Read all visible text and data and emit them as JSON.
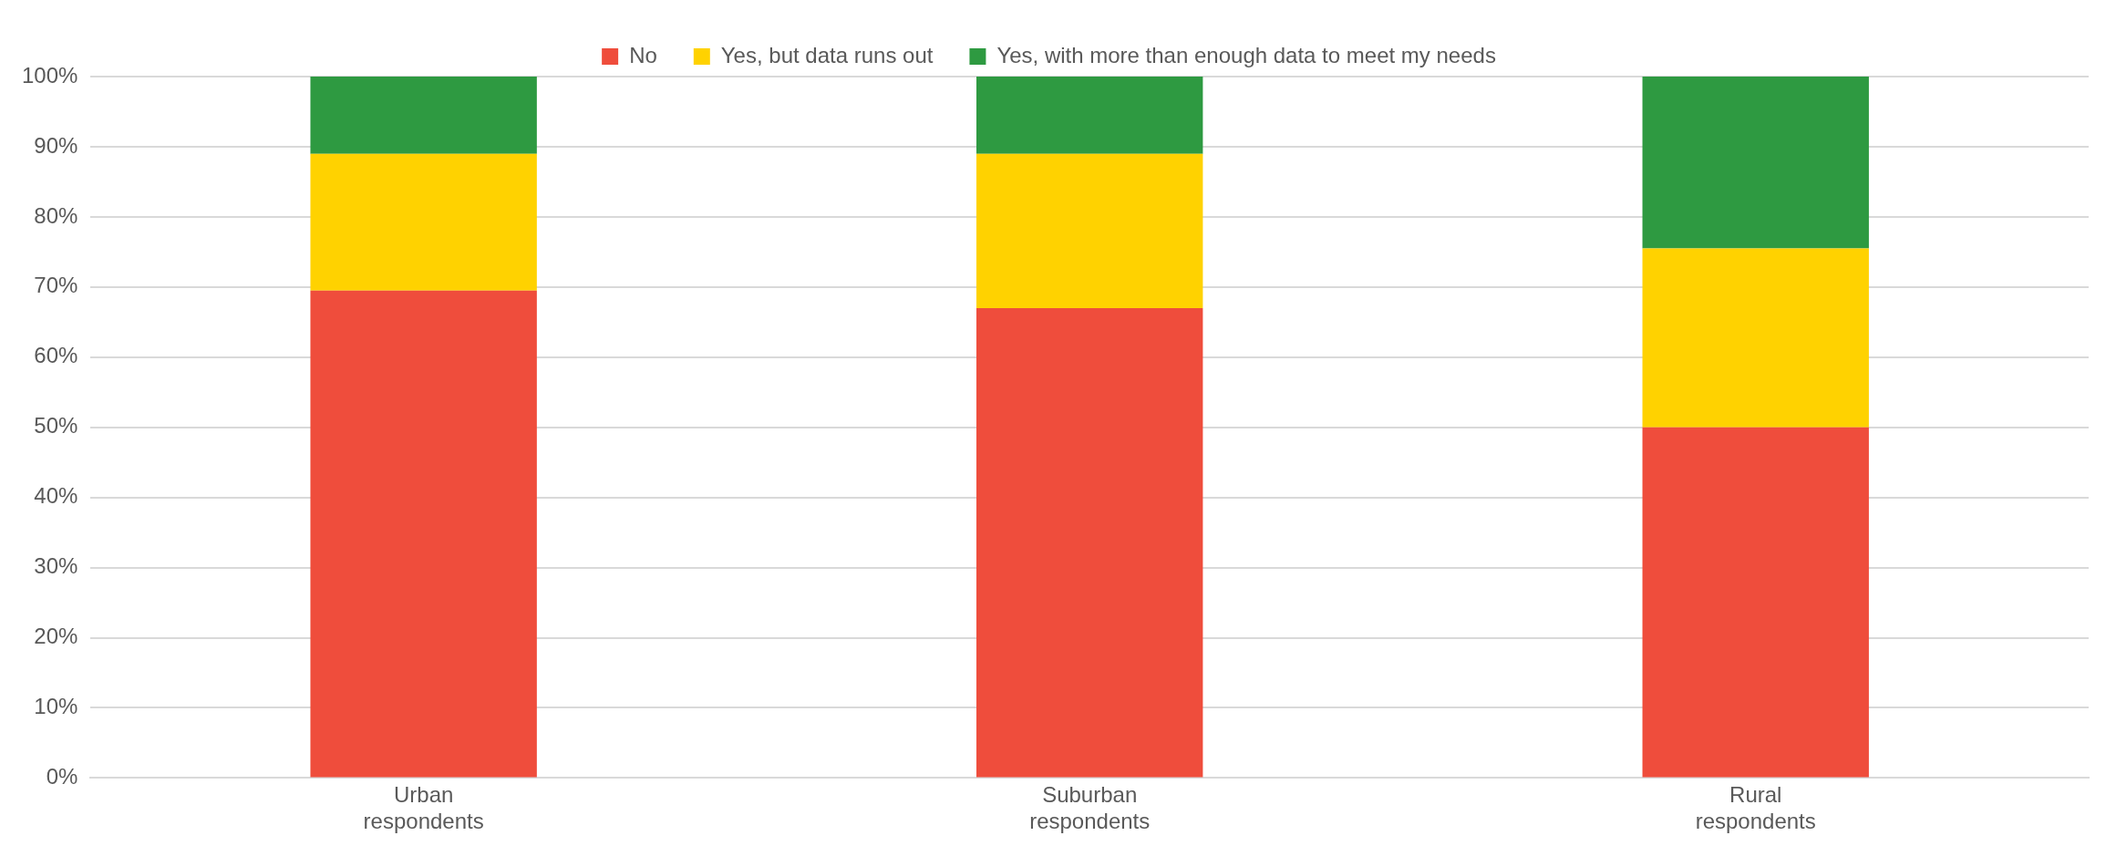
{
  "chart_data": {
    "type": "bar",
    "stacked": true,
    "categories": [
      "Urban respondents",
      "Suburban respondents",
      "Rural respondents"
    ],
    "series": [
      {
        "name": "No",
        "color": "#ef4d3c",
        "values": [
          69.5,
          67,
          50
        ]
      },
      {
        "name": "Yes, but data runs out",
        "color": "#ffd200",
        "values": [
          19.5,
          22,
          25.5
        ]
      },
      {
        "name": "Yes, with more than enough data to meet my needs",
        "color": "#2e9a41",
        "values": [
          11,
          11,
          24.5
        ]
      }
    ],
    "ylim": [
      0,
      100
    ],
    "yticks": [
      {
        "value": 0,
        "label": "0%"
      },
      {
        "value": 10,
        "label": "10%"
      },
      {
        "value": 20,
        "label": "20%"
      },
      {
        "value": 30,
        "label": "30%"
      },
      {
        "value": 40,
        "label": "40%"
      },
      {
        "value": 50,
        "label": "50%"
      },
      {
        "value": 60,
        "label": "60%"
      },
      {
        "value": 70,
        "label": "70%"
      },
      {
        "value": 80,
        "label": "80%"
      },
      {
        "value": 90,
        "label": "90%"
      },
      {
        "value": 100,
        "label": "100%"
      }
    ],
    "grid": "y",
    "legend": "top"
  }
}
